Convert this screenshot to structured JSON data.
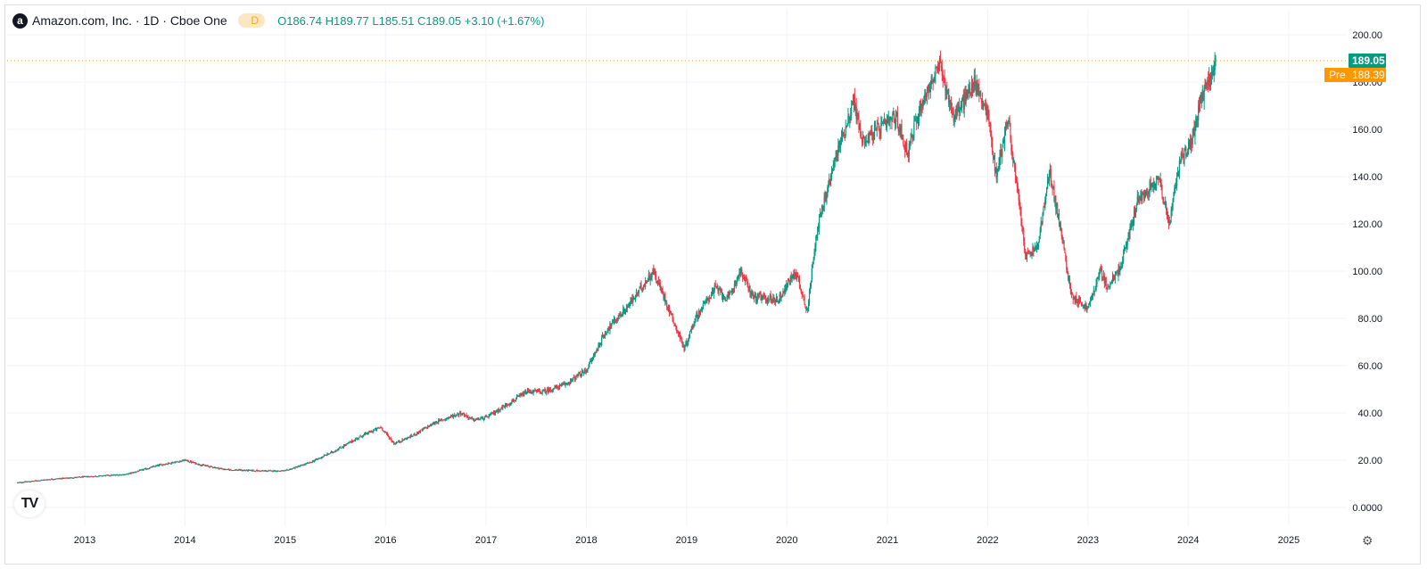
{
  "header": {
    "logo_letter": "a",
    "symbol": "Amazon.com, Inc. · 1D · Cboe One",
    "session_icon": "sun-icon",
    "session_badge": "D",
    "ohlc": {
      "o_label": "O",
      "o": "186.74",
      "h_label": "H",
      "h": "189.77",
      "l_label": "L",
      "l": "185.51",
      "c_label": "C",
      "c": "189.05",
      "change": "+3.10 (+1.67%)"
    }
  },
  "price_labels": {
    "last": "189.05",
    "pre_tag": "Pre",
    "pre": "188.39"
  },
  "colors": {
    "up": "#089981",
    "down": "#f23645",
    "pre": "#ff9800",
    "grid": "#f0f3fa",
    "text": "#131722"
  },
  "icons": {
    "brand": "tradingview-logo-icon",
    "settings": "gear-icon"
  },
  "chart_data": {
    "type": "candlestick",
    "title": "Amazon.com, Inc. · 1D · Cboe One",
    "x_ticks": [
      "2013",
      "2014",
      "2015",
      "2016",
      "2017",
      "2018",
      "2019",
      "2020",
      "2021",
      "2022",
      "2023",
      "2024",
      "2025"
    ],
    "y_ticks": [
      "0.0000",
      "20.00",
      "40.00",
      "60.00",
      "80.00",
      "100.00",
      "120.00",
      "140.00",
      "160.00",
      "180.00",
      "200.00"
    ],
    "ylim": [
      0,
      200
    ],
    "xlim": [
      "2012-05-01",
      "2025-11-01"
    ],
    "grid": true,
    "last_price": 189.05,
    "premarket_price": 188.39,
    "approx_close_path": [
      [
        "2012-05-01",
        10.5
      ],
      [
        "2012-09-01",
        12.0
      ],
      [
        "2013-01-01",
        13.0
      ],
      [
        "2013-06-01",
        14.0
      ],
      [
        "2013-10-01",
        18.0
      ],
      [
        "2014-01-01",
        20.0
      ],
      [
        "2014-03-01",
        18.0
      ],
      [
        "2014-06-01",
        16.0
      ],
      [
        "2014-10-01",
        15.5
      ],
      [
        "2015-01-01",
        15.5
      ],
      [
        "2015-04-01",
        19.0
      ],
      [
        "2015-07-01",
        24.0
      ],
      [
        "2015-10-01",
        30.0
      ],
      [
        "2015-12-15",
        34.0
      ],
      [
        "2016-02-01",
        27.0
      ],
      [
        "2016-04-01",
        30.0
      ],
      [
        "2016-07-01",
        36.0
      ],
      [
        "2016-10-01",
        40.0
      ],
      [
        "2016-11-15",
        37.0
      ],
      [
        "2017-01-01",
        38.0
      ],
      [
        "2017-06-01",
        49.0
      ],
      [
        "2017-08-01",
        49.0
      ],
      [
        "2017-10-15",
        52.0
      ],
      [
        "2018-01-01",
        58.0
      ],
      [
        "2018-03-15",
        75.0
      ],
      [
        "2018-06-01",
        85.0
      ],
      [
        "2018-09-01",
        100.0
      ],
      [
        "2018-10-15",
        88.0
      ],
      [
        "2018-12-24",
        67.0
      ],
      [
        "2019-02-01",
        80.0
      ],
      [
        "2019-04-15",
        93.0
      ],
      [
        "2019-06-01",
        88.0
      ],
      [
        "2019-07-15",
        100.0
      ],
      [
        "2019-09-01",
        89.0
      ],
      [
        "2019-12-01",
        88.0
      ],
      [
        "2020-02-01",
        100.0
      ],
      [
        "2020-03-16",
        83.0
      ],
      [
        "2020-04-15",
        115.0
      ],
      [
        "2020-07-01",
        150.0
      ],
      [
        "2020-09-01",
        172.0
      ],
      [
        "2020-10-01",
        155.0
      ],
      [
        "2020-12-01",
        160.0
      ],
      [
        "2021-02-01",
        165.0
      ],
      [
        "2021-03-15",
        150.0
      ],
      [
        "2021-05-01",
        170.0
      ],
      [
        "2021-07-10",
        187.0
      ],
      [
        "2021-09-01",
        165.0
      ],
      [
        "2021-11-15",
        180.0
      ],
      [
        "2022-01-01",
        167.0
      ],
      [
        "2022-02-01",
        140.0
      ],
      [
        "2022-03-15",
        165.0
      ],
      [
        "2022-05-20",
        106.0
      ],
      [
        "2022-07-01",
        110.0
      ],
      [
        "2022-08-15",
        142.0
      ],
      [
        "2022-09-30",
        113.0
      ],
      [
        "2022-11-01",
        90.0
      ],
      [
        "2023-01-01",
        84.0
      ],
      [
        "2023-02-15",
        100.0
      ],
      [
        "2023-03-15",
        93.0
      ],
      [
        "2023-05-01",
        102.0
      ],
      [
        "2023-07-01",
        130.0
      ],
      [
        "2023-09-15",
        140.0
      ],
      [
        "2023-10-25",
        120.0
      ],
      [
        "2023-12-01",
        147.0
      ],
      [
        "2024-01-15",
        155.0
      ],
      [
        "2024-02-15",
        172.0
      ],
      [
        "2024-04-12",
        189.0
      ]
    ]
  }
}
